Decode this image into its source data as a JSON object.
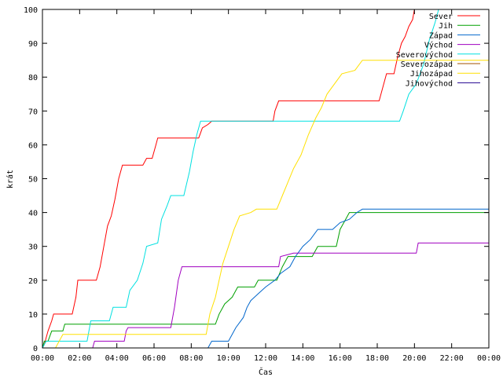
{
  "chart_data": {
    "type": "line",
    "title": "",
    "xlabel": "Čas",
    "ylabel": "krát",
    "xlim": [
      0,
      24
    ],
    "ylim": [
      0,
      100
    ],
    "grid": false,
    "legend_position": "top-right",
    "x_tick_labels": [
      "00:00",
      "02:00",
      "04:00",
      "06:00",
      "08:00",
      "10:00",
      "12:00",
      "14:00",
      "16:00",
      "18:00",
      "20:00",
      "22:00",
      "00:00"
    ],
    "y_tick_labels": [
      "0",
      "10",
      "20",
      "30",
      "40",
      "50",
      "60",
      "70",
      "80",
      "90",
      "100"
    ],
    "series": [
      {
        "name": "Sever",
        "color": "#ff0000",
        "points": [
          [
            0,
            0
          ],
          [
            0.1,
            1
          ],
          [
            0.2,
            3
          ],
          [
            0.3,
            5
          ],
          [
            0.5,
            8
          ],
          [
            0.6,
            10
          ],
          [
            1.6,
            10
          ],
          [
            1.8,
            15
          ],
          [
            1.9,
            20
          ],
          [
            2.9,
            20
          ],
          [
            3.1,
            24
          ],
          [
            3.3,
            30
          ],
          [
            3.5,
            36
          ],
          [
            3.7,
            39
          ],
          [
            3.9,
            44
          ],
          [
            4.1,
            50
          ],
          [
            4.3,
            54
          ],
          [
            5.4,
            54
          ],
          [
            5.6,
            56
          ],
          [
            5.9,
            56
          ],
          [
            6.1,
            60
          ],
          [
            6.2,
            62
          ],
          [
            8.4,
            62
          ],
          [
            8.6,
            65
          ],
          [
            8.9,
            66
          ],
          [
            9.1,
            67
          ],
          [
            12.4,
            67
          ],
          [
            12.5,
            70
          ],
          [
            12.7,
            73
          ],
          [
            18.1,
            73
          ],
          [
            18.3,
            77
          ],
          [
            18.5,
            81
          ],
          [
            18.9,
            81
          ],
          [
            19.1,
            86
          ],
          [
            19.3,
            90
          ],
          [
            19.5,
            92
          ],
          [
            19.7,
            95
          ],
          [
            19.9,
            97
          ],
          [
            20.0,
            100
          ]
        ]
      },
      {
        "name": "Jih",
        "color": "#00a000",
        "points": [
          [
            0,
            0
          ],
          [
            0.1,
            2
          ],
          [
            0.3,
            2
          ],
          [
            0.5,
            5
          ],
          [
            1.1,
            5
          ],
          [
            1.2,
            7
          ],
          [
            9.3,
            7
          ],
          [
            9.5,
            10
          ],
          [
            9.8,
            13
          ],
          [
            10.2,
            15
          ],
          [
            10.5,
            18
          ],
          [
            11.4,
            18
          ],
          [
            11.6,
            20
          ],
          [
            12.6,
            20
          ],
          [
            12.9,
            24
          ],
          [
            13.2,
            27
          ],
          [
            14.5,
            27
          ],
          [
            14.8,
            30
          ],
          [
            15.8,
            30
          ],
          [
            16.0,
            35
          ],
          [
            16.3,
            38
          ],
          [
            16.5,
            40
          ],
          [
            24,
            40
          ]
        ]
      },
      {
        "name": "Západ",
        "color": "#0066cc",
        "points": [
          [
            0,
            0
          ],
          [
            8.9,
            0
          ],
          [
            9.1,
            2
          ],
          [
            10.0,
            2
          ],
          [
            10.2,
            4
          ],
          [
            10.4,
            6
          ],
          [
            10.8,
            9
          ],
          [
            11.0,
            12
          ],
          [
            11.2,
            14
          ],
          [
            11.6,
            16
          ],
          [
            12.0,
            18
          ],
          [
            12.5,
            20
          ],
          [
            12.8,
            22
          ],
          [
            13.3,
            24
          ],
          [
            13.6,
            27
          ],
          [
            14.0,
            30
          ],
          [
            14.4,
            32
          ],
          [
            14.8,
            35
          ],
          [
            15.6,
            35
          ],
          [
            16.0,
            37
          ],
          [
            16.5,
            38
          ],
          [
            16.9,
            40
          ],
          [
            17.2,
            41
          ],
          [
            24,
            41
          ]
        ]
      },
      {
        "name": "Východ",
        "color": "#a000c0",
        "points": [
          [
            0,
            0
          ],
          [
            2.7,
            0
          ],
          [
            2.8,
            2
          ],
          [
            4.4,
            2
          ],
          [
            4.5,
            5
          ],
          [
            4.6,
            6
          ],
          [
            6.9,
            6
          ],
          [
            7.1,
            12
          ],
          [
            7.3,
            20
          ],
          [
            7.5,
            24
          ],
          [
            12.7,
            24
          ],
          [
            12.8,
            27
          ],
          [
            13.5,
            28
          ],
          [
            20.1,
            28
          ],
          [
            20.2,
            31
          ],
          [
            24,
            31
          ]
        ]
      },
      {
        "name": "Severovýchod",
        "color": "#00e0e0",
        "points": [
          [
            0,
            0
          ],
          [
            0.2,
            2
          ],
          [
            2.4,
            2
          ],
          [
            2.6,
            8
          ],
          [
            3.6,
            8
          ],
          [
            3.8,
            12
          ],
          [
            4.5,
            12
          ],
          [
            4.7,
            17
          ],
          [
            5.1,
            20
          ],
          [
            5.4,
            25
          ],
          [
            5.6,
            30
          ],
          [
            6.2,
            31
          ],
          [
            6.4,
            38
          ],
          [
            6.7,
            42
          ],
          [
            6.9,
            45
          ],
          [
            7.6,
            45
          ],
          [
            7.9,
            52
          ],
          [
            8.1,
            58
          ],
          [
            8.3,
            63
          ],
          [
            8.5,
            67
          ],
          [
            19.2,
            67
          ],
          [
            19.4,
            70
          ],
          [
            19.7,
            75
          ],
          [
            20.1,
            78
          ],
          [
            20.5,
            84
          ],
          [
            20.8,
            91
          ],
          [
            21.1,
            96
          ],
          [
            21.3,
            100
          ]
        ]
      },
      {
        "name": "Severozápad",
        "color": "#a05000",
        "points": []
      },
      {
        "name": "Jihozápad",
        "color": "#ffe000",
        "points": [
          [
            0,
            0
          ],
          [
            0.7,
            0
          ],
          [
            0.9,
            2
          ],
          [
            1.1,
            4
          ],
          [
            8.8,
            4
          ],
          [
            9.0,
            10
          ],
          [
            9.3,
            15
          ],
          [
            9.5,
            20
          ],
          [
            9.7,
            25
          ],
          [
            10.0,
            30
          ],
          [
            10.3,
            35
          ],
          [
            10.6,
            39
          ],
          [
            11.2,
            40
          ],
          [
            11.5,
            41
          ],
          [
            12.6,
            41
          ],
          [
            12.9,
            45
          ],
          [
            13.2,
            49
          ],
          [
            13.5,
            53
          ],
          [
            13.9,
            57
          ],
          [
            14.3,
            63
          ],
          [
            14.7,
            68
          ],
          [
            15.0,
            71
          ],
          [
            15.3,
            75
          ],
          [
            15.7,
            78
          ],
          [
            16.1,
            81
          ],
          [
            16.8,
            82
          ],
          [
            17.2,
            85
          ],
          [
            24,
            85
          ]
        ]
      },
      {
        "name": "Jihovýchod",
        "color": "#20008f",
        "points": []
      }
    ]
  }
}
